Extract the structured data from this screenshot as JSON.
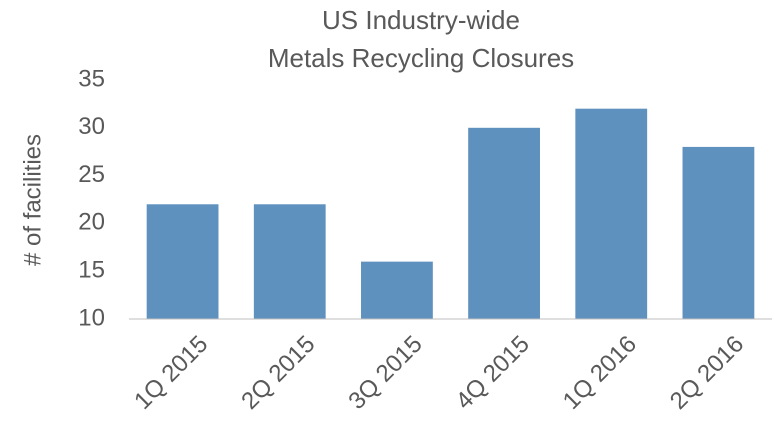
{
  "chart_data": {
    "type": "bar",
    "title": [
      "US Industry-wide",
      "Metals Recycling Closures"
    ],
    "y_label": "# of facilities",
    "categories": [
      "1Q 2015",
      "2Q 2015",
      "3Q 2015",
      "4Q 2015",
      "1Q 2016",
      "2Q 2016"
    ],
    "values": [
      22,
      22,
      16,
      30,
      32,
      28
    ],
    "color": "#5f91bf",
    "ylim": [
      10,
      35
    ],
    "yticks": [
      10,
      15,
      20,
      25,
      30,
      35
    ],
    "grid": false
  }
}
